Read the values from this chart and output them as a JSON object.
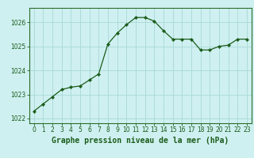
{
  "x": [
    0,
    1,
    2,
    3,
    4,
    5,
    6,
    7,
    8,
    9,
    10,
    11,
    12,
    13,
    14,
    15,
    16,
    17,
    18,
    19,
    20,
    21,
    22,
    23
  ],
  "y": [
    1022.3,
    1022.6,
    1022.9,
    1023.2,
    1023.3,
    1023.35,
    1023.6,
    1023.85,
    1025.1,
    1025.55,
    1025.9,
    1026.2,
    1026.2,
    1026.05,
    1025.65,
    1025.3,
    1025.3,
    1025.3,
    1024.85,
    1024.85,
    1025.0,
    1025.05,
    1025.3,
    1025.3
  ],
  "line_color": "#1a5c1a",
  "marker": "D",
  "marker_size": 2.2,
  "line_width": 0.9,
  "bg_color": "#cff0f0",
  "grid_color": "#a8d8d8",
  "xlabel": "Graphe pression niveau de la mer (hPa)",
  "xlabel_fontsize": 7.0,
  "xlabel_color": "#1a5c1a",
  "ylim": [
    1021.8,
    1026.6
  ],
  "xlim": [
    -0.5,
    23.5
  ],
  "yticks": [
    1022,
    1023,
    1024,
    1025,
    1026
  ],
  "xticks": [
    0,
    1,
    2,
    3,
    4,
    5,
    6,
    7,
    8,
    9,
    10,
    11,
    12,
    13,
    14,
    15,
    16,
    17,
    18,
    19,
    20,
    21,
    22,
    23
  ],
  "tick_fontsize": 5.5,
  "tick_color": "#1a5c1a",
  "spine_color": "#2a6e2a"
}
